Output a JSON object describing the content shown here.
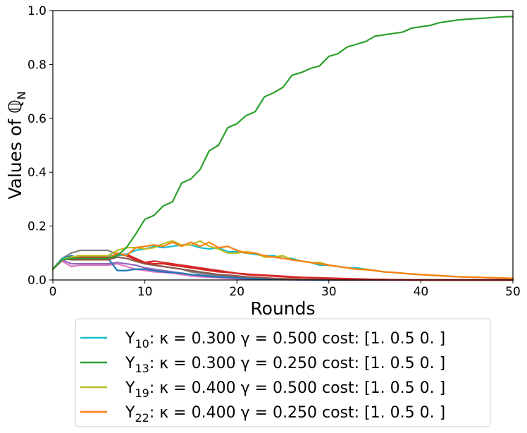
{
  "chart_data": {
    "type": "line",
    "xlabel": "Rounds",
    "ylabel_prefix": "Values of ",
    "ylabel_symbol": "ℚ",
    "ylabel_sub": "N",
    "xlim": [
      0,
      50
    ],
    "ylim": [
      0,
      1.0
    ],
    "xticks": [
      0,
      10,
      20,
      30,
      40,
      50
    ],
    "yticks": [
      0.0,
      0.2,
      0.4,
      0.6,
      0.8,
      1.0
    ],
    "xtick_labels": [
      "0",
      "10",
      "20",
      "30",
      "40",
      "50"
    ],
    "ytick_labels": [
      "0.0",
      "0.2",
      "0.4",
      "0.6",
      "0.8",
      "1.0"
    ],
    "grid": false,
    "legend_position": "bottom-center",
    "legend": [
      {
        "base": "Y",
        "sub": "10",
        "desc": ": κ =  0.300  γ =  0.500  cost: [1.  0.5 0. ]",
        "color": "#17becf"
      },
      {
        "base": "Y",
        "sub": "13",
        "desc": ": κ =  0.300  γ =  0.250  cost: [1.  0.5 0. ]",
        "color": "#2ca02c"
      },
      {
        "base": "Y",
        "sub": "19",
        "desc": ": κ =  0.400  γ =  0.500  cost: [1.  0.5 0. ]",
        "color": "#bcbd22"
      },
      {
        "base": "Y",
        "sub": "22",
        "desc": ": κ =  0.400  γ =  0.250  cost: [1.  0.5 0. ]",
        "color": "#ff7f0e"
      }
    ],
    "x": [
      0,
      1,
      2,
      3,
      4,
      5,
      6,
      7,
      8,
      9,
      10,
      11,
      12,
      13,
      14,
      15,
      16,
      17,
      18,
      19,
      20,
      21,
      22,
      23,
      24,
      25,
      26,
      27,
      28,
      29,
      30,
      31,
      32,
      33,
      34,
      35,
      36,
      37,
      38,
      39,
      40,
      41,
      42,
      43,
      44,
      45,
      46,
      47,
      48,
      49,
      50
    ],
    "series": [
      {
        "color": "#7f7f7f",
        "values": [
          0.04,
          0.08,
          0.1,
          0.11,
          0.11,
          0.11,
          0.11,
          0.095,
          0.09,
          0.075,
          0.06,
          0.055,
          0.05,
          0.045,
          0.04,
          0.03,
          0.025,
          0.02,
          0.015,
          0.012,
          0.01,
          0.008,
          0.006,
          0.005,
          0.004,
          0.003,
          0.002,
          0.002,
          0.001,
          0.001,
          0.001,
          0.0,
          0.0,
          0.0,
          0.0,
          0.0,
          0.0,
          0.0,
          0.0,
          0.0,
          0.0,
          0.0,
          0.0,
          0.0,
          0.0,
          0.0,
          0.0,
          0.0,
          0.0,
          0.0,
          0.0
        ]
      },
      {
        "color": "#e377c2",
        "values": [
          0.04,
          0.07,
          0.05,
          0.055,
          0.055,
          0.055,
          0.055,
          0.06,
          0.05,
          0.04,
          0.035,
          0.03,
          0.028,
          0.025,
          0.02,
          0.015,
          0.012,
          0.01,
          0.008,
          0.006,
          0.005,
          0.004,
          0.003,
          0.002,
          0.002,
          0.001,
          0.001,
          0.0,
          0.0,
          0.0,
          0.0,
          0.0,
          0.0,
          0.0,
          0.0,
          0.0,
          0.0,
          0.0,
          0.0,
          0.0,
          0.0,
          0.0,
          0.0,
          0.0,
          0.0,
          0.0,
          0.0,
          0.0,
          0.0,
          0.0,
          0.0
        ]
      },
      {
        "color": "#9467bd",
        "values": [
          0.04,
          0.075,
          0.06,
          0.06,
          0.06,
          0.06,
          0.06,
          0.065,
          0.06,
          0.055,
          0.045,
          0.04,
          0.035,
          0.03,
          0.025,
          0.02,
          0.016,
          0.012,
          0.01,
          0.008,
          0.006,
          0.005,
          0.004,
          0.003,
          0.002,
          0.002,
          0.001,
          0.001,
          0.0,
          0.0,
          0.0,
          0.0,
          0.0,
          0.0,
          0.0,
          0.0,
          0.0,
          0.0,
          0.0,
          0.0,
          0.0,
          0.0,
          0.0,
          0.0,
          0.0,
          0.0,
          0.0,
          0.0,
          0.0,
          0.0,
          0.0
        ]
      },
      {
        "color": "#1f77b4",
        "values": [
          0.04,
          0.08,
          0.09,
          0.08,
          0.08,
          0.08,
          0.08,
          0.035,
          0.035,
          0.04,
          0.04,
          0.035,
          0.03,
          0.028,
          0.025,
          0.02,
          0.018,
          0.014,
          0.012,
          0.01,
          0.008,
          0.006,
          0.005,
          0.004,
          0.003,
          0.002,
          0.002,
          0.001,
          0.001,
          0.0,
          0.0,
          0.0,
          0.0,
          0.0,
          0.0,
          0.0,
          0.0,
          0.0,
          0.0,
          0.0,
          0.0,
          0.0,
          0.0,
          0.0,
          0.0,
          0.0,
          0.0,
          0.0,
          0.0,
          0.0,
          0.0
        ]
      },
      {
        "color": "#8c564b",
        "values": [
          0.04,
          0.08,
          0.075,
          0.075,
          0.075,
          0.075,
          0.075,
          0.085,
          0.08,
          0.07,
          0.06,
          0.055,
          0.05,
          0.045,
          0.04,
          0.035,
          0.03,
          0.025,
          0.02,
          0.018,
          0.015,
          0.012,
          0.01,
          0.008,
          0.006,
          0.005,
          0.004,
          0.003,
          0.002,
          0.002,
          0.001,
          0.001,
          0.0,
          0.0,
          0.0,
          0.0,
          0.0,
          0.0,
          0.0,
          0.0,
          0.0,
          0.0,
          0.0,
          0.0,
          0.0,
          0.0,
          0.0,
          0.0,
          0.0,
          0.0,
          0.0
        ]
      },
      {
        "color": "#d62728",
        "values": [
          0.04,
          0.08,
          0.08,
          0.08,
          0.08,
          0.08,
          0.08,
          0.1,
          0.09,
          0.075,
          0.065,
          0.06,
          0.06,
          0.055,
          0.05,
          0.045,
          0.04,
          0.035,
          0.03,
          0.028,
          0.024,
          0.02,
          0.018,
          0.016,
          0.014,
          0.012,
          0.01,
          0.009,
          0.008,
          0.007,
          0.006,
          0.005,
          0.004,
          0.003,
          0.002,
          0.002,
          0.001,
          0.001,
          0.001,
          0.0,
          0.0,
          0.0,
          0.0,
          0.0,
          0.0,
          0.0,
          0.0,
          0.0,
          0.0,
          0.0,
          0.0
        ]
      },
      {
        "color": "#d62728",
        "values": [
          0.04,
          0.08,
          0.085,
          0.085,
          0.085,
          0.085,
          0.085,
          0.095,
          0.095,
          0.08,
          0.065,
          0.07,
          0.065,
          0.06,
          0.055,
          0.05,
          0.045,
          0.04,
          0.035,
          0.03,
          0.025,
          0.022,
          0.02,
          0.018,
          0.016,
          0.014,
          0.012,
          0.01,
          0.009,
          0.008,
          0.007,
          0.006,
          0.005,
          0.004,
          0.003,
          0.002,
          0.002,
          0.001,
          0.001,
          0.0,
          0.0,
          0.0,
          0.0,
          0.0,
          0.0,
          0.0,
          0.0,
          0.0,
          0.0,
          0.0,
          0.0
        ]
      },
      {
        "color": "#17becf",
        "values": [
          0.04,
          0.08,
          0.085,
          0.09,
          0.09,
          0.09,
          0.09,
          0.09,
          0.095,
          0.11,
          0.115,
          0.125,
          0.12,
          0.125,
          0.13,
          0.13,
          0.12,
          0.115,
          0.12,
          0.105,
          0.105,
          0.1,
          0.095,
          0.09,
          0.09,
          0.08,
          0.08,
          0.07,
          0.065,
          0.055,
          0.055,
          0.05,
          0.045,
          0.045,
          0.04,
          0.035,
          0.03,
          0.028,
          0.025,
          0.022,
          0.02,
          0.018,
          0.016,
          0.014,
          0.012,
          0.011,
          0.01,
          0.009,
          0.008,
          0.007,
          0.006
        ]
      },
      {
        "color": "#bcbd22",
        "values": [
          0.04,
          0.075,
          0.085,
          0.09,
          0.09,
          0.09,
          0.09,
          0.11,
          0.12,
          0.12,
          0.115,
          0.12,
          0.135,
          0.145,
          0.13,
          0.13,
          0.145,
          0.125,
          0.115,
          0.1,
          0.1,
          0.105,
          0.1,
          0.085,
          0.085,
          0.09,
          0.075,
          0.07,
          0.065,
          0.065,
          0.055,
          0.05,
          0.045,
          0.04,
          0.04,
          0.035,
          0.03,
          0.028,
          0.025,
          0.022,
          0.02,
          0.018,
          0.016,
          0.014,
          0.012,
          0.011,
          0.01,
          0.009,
          0.008,
          0.007,
          0.006
        ]
      },
      {
        "color": "#ff7f0e",
        "values": [
          0.04,
          0.075,
          0.08,
          0.08,
          0.08,
          0.08,
          0.08,
          0.1,
          0.09,
          0.12,
          0.125,
          0.13,
          0.125,
          0.14,
          0.125,
          0.14,
          0.125,
          0.14,
          0.12,
          0.125,
          0.11,
          0.1,
          0.1,
          0.09,
          0.085,
          0.08,
          0.075,
          0.07,
          0.065,
          0.06,
          0.055,
          0.05,
          0.045,
          0.04,
          0.038,
          0.035,
          0.03,
          0.028,
          0.025,
          0.022,
          0.02,
          0.018,
          0.016,
          0.014,
          0.012,
          0.011,
          0.01,
          0.009,
          0.008,
          0.007,
          0.006
        ]
      },
      {
        "color": "#2ca02c",
        "values": [
          0.04,
          0.075,
          0.08,
          0.08,
          0.08,
          0.08,
          0.08,
          0.09,
          0.12,
          0.17,
          0.225,
          0.24,
          0.275,
          0.29,
          0.36,
          0.375,
          0.41,
          0.48,
          0.5,
          0.565,
          0.58,
          0.61,
          0.625,
          0.68,
          0.695,
          0.715,
          0.76,
          0.77,
          0.785,
          0.795,
          0.83,
          0.84,
          0.865,
          0.875,
          0.885,
          0.905,
          0.91,
          0.915,
          0.92,
          0.935,
          0.94,
          0.945,
          0.955,
          0.96,
          0.965,
          0.968,
          0.97,
          0.972,
          0.975,
          0.977,
          0.978
        ]
      }
    ]
  }
}
